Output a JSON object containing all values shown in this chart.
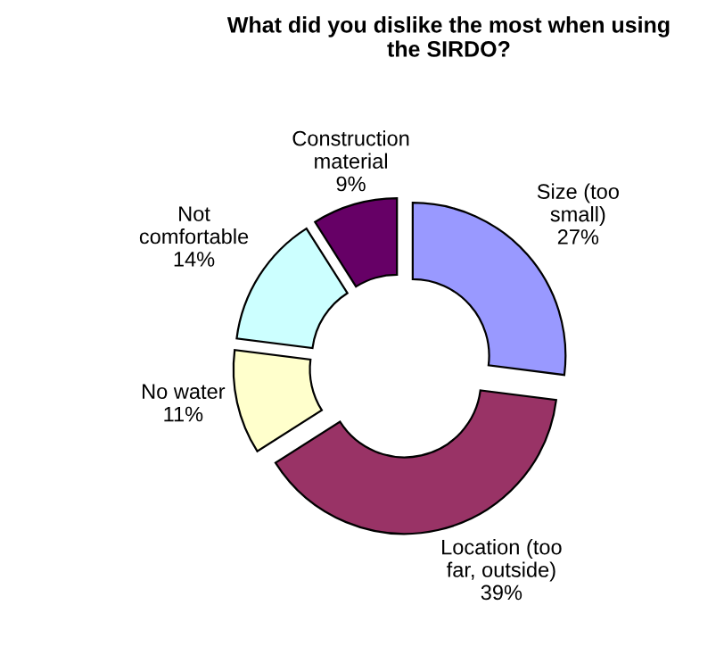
{
  "chart_data": {
    "type": "donut",
    "title": "What did you dislike the most when using\nthe SIRDO?",
    "categories": [
      "Size (too\nsmall)",
      "Location (too\nfar, outside)",
      "No water",
      "Not\ncomfortable",
      "Construction\nmaterial"
    ],
    "values": [
      27,
      39,
      11,
      14,
      9
    ],
    "value_labels": [
      "27%",
      "39%",
      "11%",
      "14%",
      "9%"
    ],
    "colors": [
      "#9999ff",
      "#993366",
      "#ffffcc",
      "#ccffff",
      "#660066"
    ],
    "legend": false
  }
}
